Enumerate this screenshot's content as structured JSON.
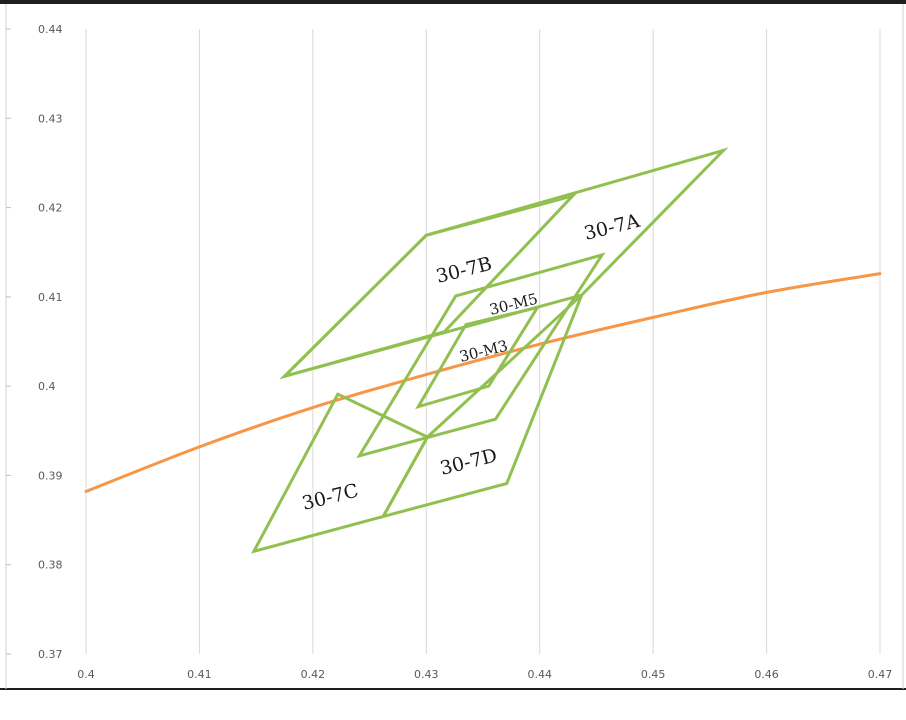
{
  "chart_data": {
    "type": "line",
    "title": "",
    "xlabel": "",
    "ylabel": "",
    "xlim": [
      0.4,
      0.47
    ],
    "ylim": [
      0.37,
      0.44
    ],
    "x_ticks": [
      "0.4",
      "0.41",
      "0.42",
      "0.43",
      "0.44",
      "0.45",
      "0.46",
      "0.47"
    ],
    "y_ticks": [
      "0.37",
      "0.38",
      "0.39",
      "0.4",
      "0.41",
      "0.42",
      "0.43",
      "0.44"
    ],
    "grid": {
      "vertical": true,
      "horizontal": false
    },
    "legend": "none",
    "colors": {
      "curve": "#f79646",
      "regions": "#92c050",
      "grid": "#d9d9d9",
      "frame": "#1f1f1f"
    },
    "curve": {
      "x": [
        0.4,
        0.41,
        0.42,
        0.43,
        0.44,
        0.45,
        0.46,
        0.47
      ],
      "y": [
        0.3882,
        0.3932,
        0.3976,
        0.4013,
        0.4047,
        0.4077,
        0.4105,
        0.4126
      ]
    },
    "regions": [
      {
        "label": "30-7A",
        "x": [
          0.43,
          0.4562,
          0.4437,
          0.4175
        ],
        "y": [
          0.4169,
          0.4264,
          0.4102,
          0.4011
        ]
      },
      {
        "label": "30-7B",
        "x": [
          0.43,
          0.4429,
          0.4316,
          0.4175
        ],
        "y": [
          0.4169,
          0.4213,
          0.4061,
          0.4011
        ]
      },
      {
        "label": "30-7C",
        "x": [
          0.4148,
          0.4222,
          0.4301,
          0.4262
        ],
        "y": [
          0.3815,
          0.3991,
          0.3943,
          0.3854
        ]
      },
      {
        "label": "30-7D",
        "x": [
          0.4301,
          0.4437,
          0.4371,
          0.4262
        ],
        "y": [
          0.3943,
          0.4102,
          0.3891,
          0.3854
        ]
      },
      {
        "label": "30-M5",
        "x": [
          0.4326,
          0.4455,
          0.4361,
          0.4241
        ],
        "y": [
          0.4101,
          0.4147,
          0.3963,
          0.3922
        ]
      },
      {
        "label": "30-M3",
        "x": [
          0.4335,
          0.4398,
          0.4355,
          0.4293
        ],
        "y": [
          0.4069,
          0.4088,
          0.4,
          0.3977
        ]
      }
    ]
  }
}
